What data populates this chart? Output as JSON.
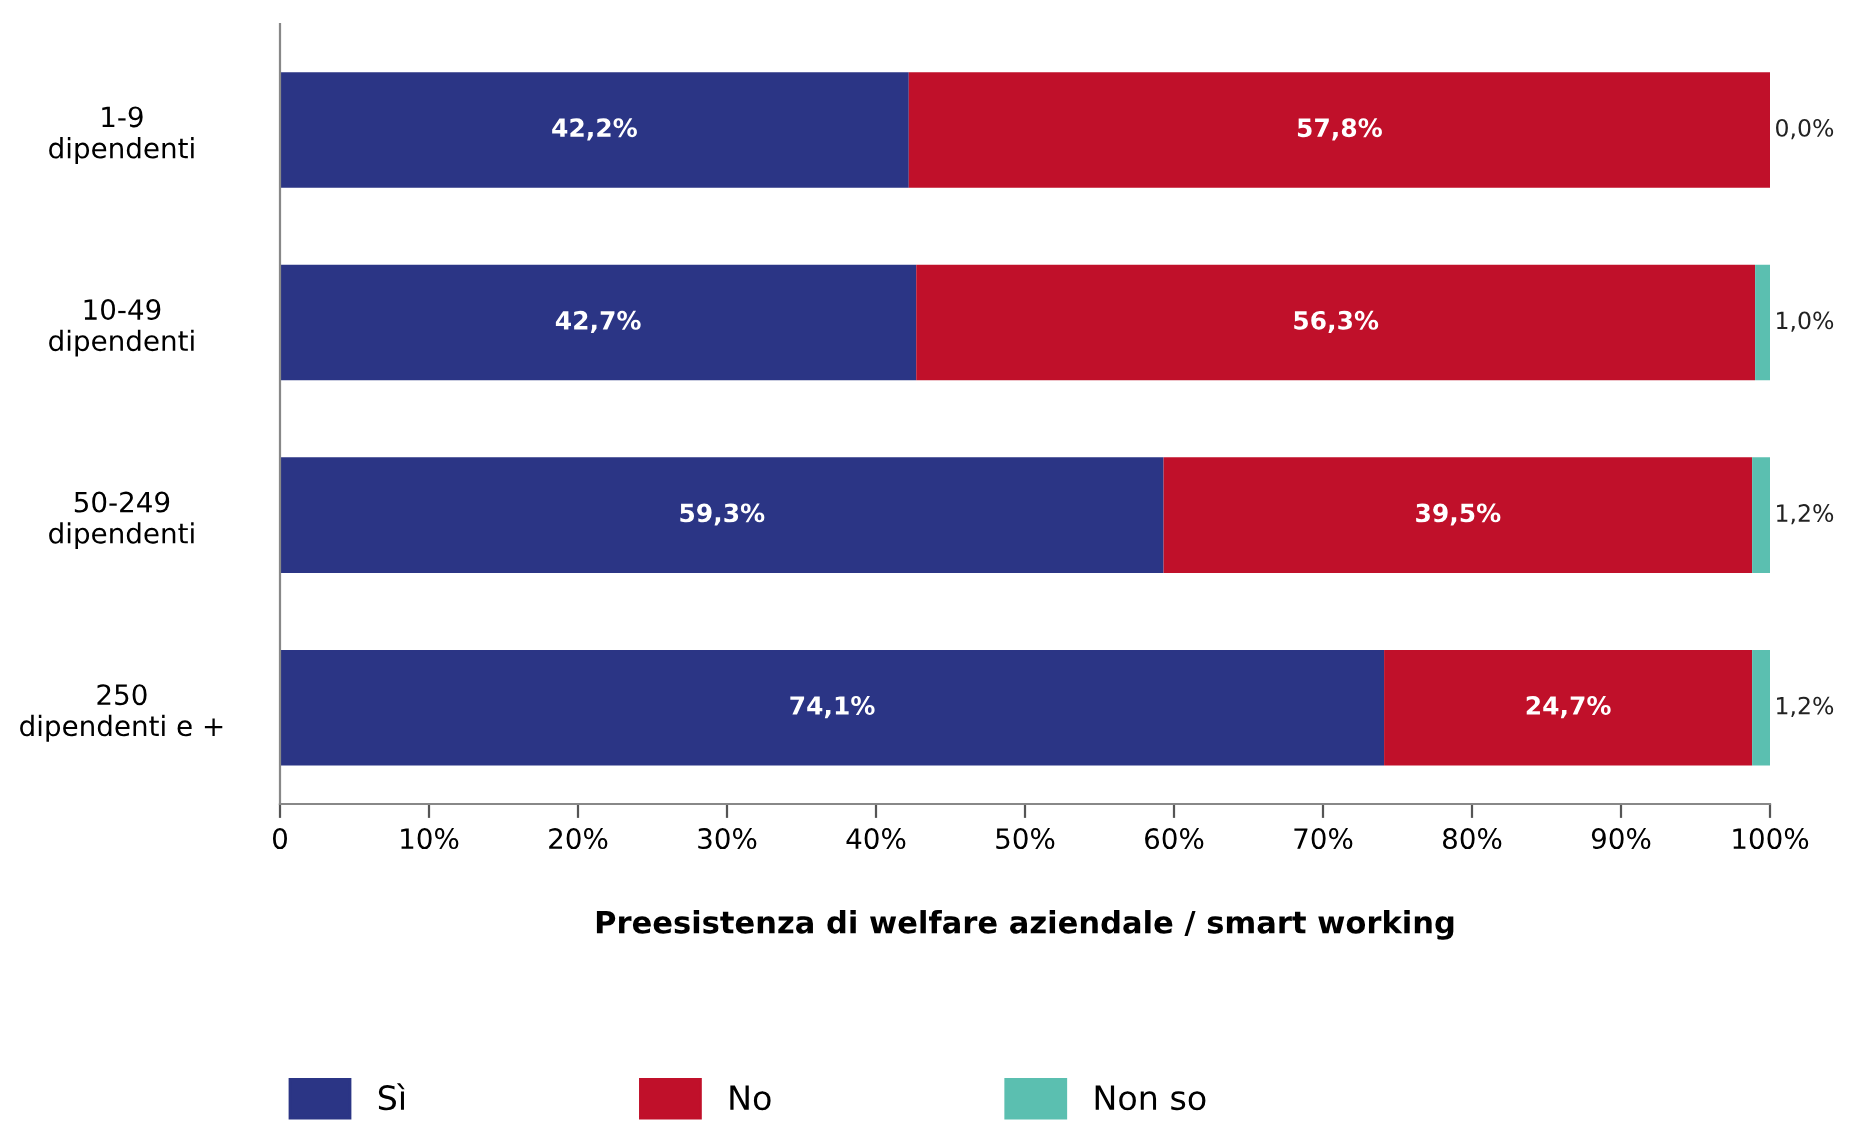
{
  "chart_data": {
    "type": "bar",
    "orientation": "horizontal",
    "stacked": true,
    "categories": [
      "1-9\ndipendenti",
      "10-49\ndipendenti",
      "50-249\ndipendenti",
      "250\ndipendenti e +"
    ],
    "series": [
      {
        "name": "Sì",
        "color": "#2b3585",
        "values": [
          42.2,
          42.7,
          59.3,
          74.1
        ],
        "value_labels": [
          "42,2%",
          "42,7%",
          "59,3%",
          "74,1%"
        ]
      },
      {
        "name": "No",
        "color": "#c0102a",
        "values": [
          57.8,
          56.3,
          39.5,
          24.7
        ],
        "value_labels": [
          "57,8%",
          "56,3%",
          "39,5%",
          "24,7%"
        ]
      },
      {
        "name": "Non so",
        "color": "#5bbfb0",
        "values": [
          0.0,
          1.0,
          1.2,
          1.2
        ],
        "value_labels": [
          "0,0%",
          "1,0%",
          "1,2%",
          "1,2%"
        ]
      }
    ],
    "xlim": [
      0,
      100
    ],
    "xticks": [
      0,
      {
        "value": 10,
        "label": "10%"
      },
      {
        "value": 20,
        "label": "20%"
      },
      {
        "value": 30,
        "label": "30%"
      },
      {
        "value": 40,
        "label": "40%"
      },
      {
        "value": 50,
        "label": "50%"
      },
      {
        "value": 60,
        "label": "60%"
      },
      {
        "value": 70,
        "label": "70%"
      },
      {
        "value": 80,
        "label": "80%"
      },
      {
        "value": 90,
        "label": "90%"
      },
      {
        "value": 100,
        "label": "100%"
      }
    ],
    "xlabel": "Preesistenza di welfare aziendale / smart working",
    "grid": false,
    "legend": "bottom left"
  }
}
